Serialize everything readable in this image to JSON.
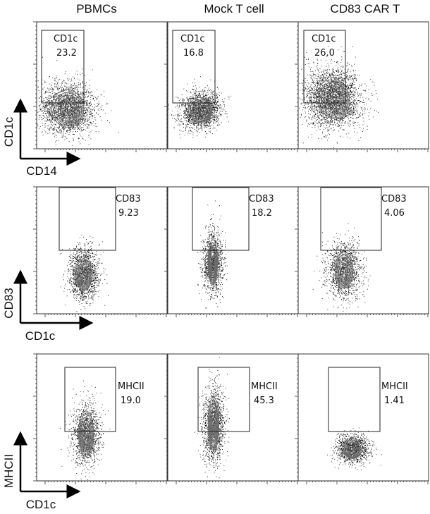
{
  "columns": [
    "PBMCs",
    "Mock T cell",
    "CD83 CAR T"
  ],
  "chart_data": [
    {
      "type": "scatter",
      "row": 1,
      "xlabel": "CD14",
      "ylabel": "CD1c",
      "gate_name": "CD1c",
      "panels": [
        {
          "column": "PBMCs",
          "gate_label": "CD1c",
          "percent": "23.2"
        },
        {
          "column": "Mock T cell",
          "gate_label": "CD1c",
          "percent": "16.8"
        },
        {
          "column": "CD83 CAR T",
          "gate_label": "CD1c",
          "percent": "26.0"
        }
      ]
    },
    {
      "type": "scatter",
      "row": 2,
      "xlabel": "CD1c",
      "ylabel": "CD83",
      "gate_name": "CD83",
      "panels": [
        {
          "column": "PBMCs",
          "gate_label": "CD83",
          "percent": "9.23"
        },
        {
          "column": "Mock T cell",
          "gate_label": "CD83",
          "percent": "18.2"
        },
        {
          "column": "CD83 CAR T",
          "gate_label": "CD83",
          "percent": "4.06"
        }
      ]
    },
    {
      "type": "scatter",
      "row": 3,
      "xlabel": "CD1c",
      "ylabel": "MHCII",
      "gate_name": "MHCII",
      "panels": [
        {
          "column": "PBMCs",
          "gate_label": "MHCII",
          "percent": "19.0"
        },
        {
          "column": "Mock T cell",
          "gate_label": "MHCII",
          "percent": "45.3"
        },
        {
          "column": "CD83 CAR T",
          "gate_label": "MHCII",
          "percent": "1.41"
        }
      ]
    }
  ]
}
